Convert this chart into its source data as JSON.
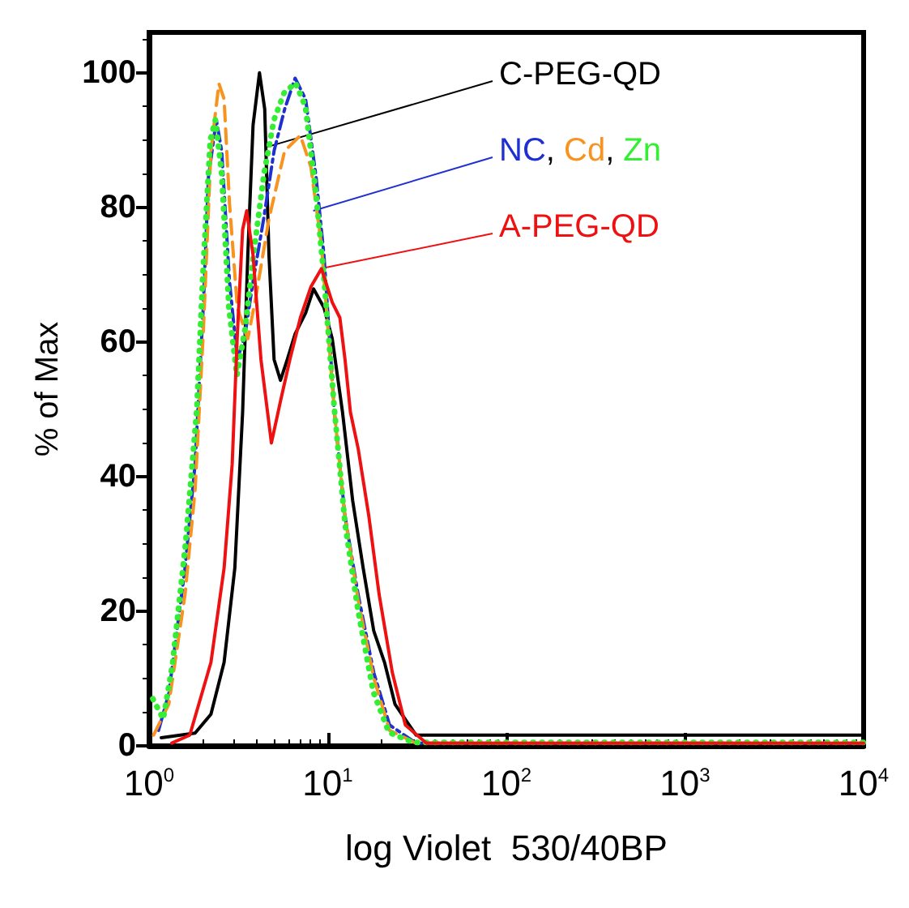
{
  "chart_data": {
    "type": "line",
    "xlabel": "log Violet  530/40BP",
    "ylabel": "% of Max",
    "log": "x",
    "xlim": [
      1,
      10000
    ],
    "ylim": [
      0,
      106
    ],
    "xticks": [
      {
        "value": 1,
        "label": "10$^{0}$"
      },
      {
        "value": 10,
        "label": "10$^{1}$"
      },
      {
        "value": 100,
        "label": "10$^{2}$"
      },
      {
        "value": 1000,
        "label": "10$^{3}$"
      },
      {
        "value": 10000,
        "label": "10$^{4}$"
      }
    ],
    "yticks": [
      0,
      20,
      40,
      60,
      80,
      100
    ],
    "grid": false,
    "marker": "none",
    "series": [
      {
        "color": "#000000",
        "line_style": "solid",
        "x": [
          1.17,
          1.81,
          2.22,
          2.63,
          3.02,
          3.34,
          3.57,
          3.82,
          4.15,
          4.44,
          4.69,
          5.01,
          5.44,
          5.94,
          6.57,
          7.52,
          8.33,
          9.53,
          10.6,
          12.1,
          13.8,
          15.8,
          18.1,
          20.8,
          23.8,
          31.2,
          10000
        ],
        "values": [
          1.2,
          1.9,
          4.7,
          12.4,
          26.4,
          49.6,
          72.9,
          92.2,
          100,
          94.6,
          72.9,
          57.4,
          54.3,
          57.4,
          61.2,
          64.3,
          67.9,
          65.1,
          60.5,
          49.6,
          36.4,
          26.4,
          17.1,
          12.4,
          6.2,
          1.6,
          1.6
        ]
      },
      {
        "color": "#1f2fd0",
        "line_style": "dashdot",
        "x": [
          1.13,
          1.29,
          1.59,
          1.81,
          2.01,
          2.15,
          2.38,
          2.55,
          2.82,
          3.12,
          3.45,
          3.82,
          4.38,
          5.01,
          5.74,
          6.57,
          7.52,
          8.61,
          9.53,
          10.9,
          12.5,
          14.8,
          18.1,
          22.2,
          31.2,
          10000
        ],
        "values": [
          2.3,
          7.8,
          26.4,
          41.9,
          65.1,
          84.5,
          93,
          88.4,
          69,
          57.4,
          61.2,
          69,
          78.3,
          88.4,
          94.6,
          99.2,
          96.1,
          84.5,
          72.9,
          49.6,
          34.1,
          22.5,
          10.9,
          3.1,
          0.4,
          0.4
        ]
      },
      {
        "color": "#f7931e",
        "line_style": "dashed",
        "x": [
          1.06,
          1.29,
          1.59,
          1.81,
          2.01,
          2.22,
          2.46,
          2.63,
          2.82,
          3.12,
          3.57,
          3.96,
          4.69,
          5.74,
          7.03,
          8.05,
          9.22,
          10.9,
          12.5,
          14.8,
          18.1,
          22.2,
          31.2,
          10000
        ],
        "values": [
          1.6,
          6.2,
          22.5,
          38,
          61.2,
          88.4,
          98.4,
          96.1,
          80.6,
          65.1,
          60.5,
          66.7,
          78.3,
          88.4,
          90.7,
          86,
          74.4,
          49.6,
          34.1,
          21.7,
          10.1,
          2.3,
          0.4,
          0.4
        ]
      },
      {
        "color": "#33ee33",
        "line_style": "dotted",
        "x": [
          1.05,
          1.2,
          1.35,
          1.6,
          1.85,
          2,
          2.2,
          2.35,
          2.55,
          2.8,
          3.1,
          3.45,
          3.8,
          4.4,
          5,
          5.7,
          6.6,
          7.5,
          8.6,
          9.5,
          10.9,
          12.5,
          14.8,
          18,
          22,
          30,
          10000
        ],
        "values": [
          7,
          4,
          12,
          30,
          50,
          70,
          90,
          93,
          85,
          65,
          55,
          62,
          72,
          85,
          93,
          97,
          98.5,
          95,
          82,
          70,
          50,
          33,
          20,
          8,
          2,
          0.5,
          0.5
        ]
      },
      {
        "color": "#ee1111",
        "line_style": "solid",
        "x": [
          1.34,
          1.69,
          2.22,
          2.63,
          2.92,
          3.12,
          3.34,
          3.52,
          3.82,
          4.23,
          4.84,
          5.44,
          6.14,
          7.03,
          8.05,
          9.22,
          10.6,
          11.7,
          12.5,
          13.4,
          14.8,
          17,
          19.4,
          23,
          27.2,
          35.7,
          10000
        ],
        "values": [
          0.4,
          1.6,
          12.4,
          26.4,
          41.9,
          61.2,
          76.7,
          79.5,
          72.9,
          57.4,
          45,
          51.2,
          57.4,
          63.6,
          68.2,
          70.9,
          65.9,
          63.6,
          57.4,
          49.6,
          44.2,
          34.1,
          22.5,
          10.9,
          3.1,
          0.4,
          0.4
        ]
      }
    ],
    "annotations": [
      {
        "text": "C-PEG-QD",
        "x": 4.6,
        "y": 89
      },
      {
        "text": "NC, Cd, Zn",
        "x": 8.3,
        "y": 79.5
      },
      {
        "text": "A-PEG-QD",
        "x": 9.5,
        "y": 71
      }
    ]
  }
}
